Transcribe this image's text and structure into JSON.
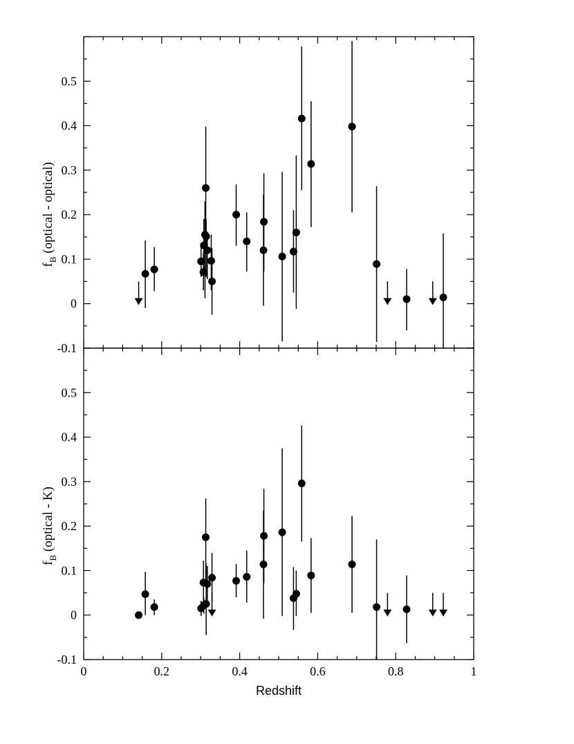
{
  "chart_data": [
    {
      "type": "scatter",
      "panel": "top",
      "xlabel": "",
      "ylabel_main": "f",
      "ylabel_sub": "B",
      "ylabel_rest": " (optical - optical)",
      "xlim": [
        0,
        1
      ],
      "ylim": [
        -0.1,
        0.6
      ],
      "y_ticks": [
        -0.1,
        0,
        0.1,
        0.2,
        0.3,
        0.4,
        0.5
      ],
      "y_tick_labels": [
        "-0.1",
        "0",
        "0.1",
        "0.2",
        "0.3",
        "0.4",
        "0.5"
      ],
      "points": [
        {
          "x": 0.158,
          "y": 0.067,
          "lo": -0.01,
          "hi": 0.142
        },
        {
          "x": 0.181,
          "y": 0.077,
          "lo": 0.028,
          "hi": 0.127
        },
        {
          "x": 0.301,
          "y": 0.095,
          "lo": 0.06,
          "hi": 0.13
        },
        {
          "x": 0.307,
          "y": 0.071,
          "lo": 0.03,
          "hi": 0.115
        },
        {
          "x": 0.308,
          "y": 0.131,
          "lo": 0.065,
          "hi": 0.19
        },
        {
          "x": 0.311,
          "y": 0.155,
          "lo": 0.012,
          "hi": 0.23
        },
        {
          "x": 0.313,
          "y": 0.26,
          "lo": 0.12,
          "hi": 0.398
        },
        {
          "x": 0.314,
          "y": 0.151,
          "lo": 0.06,
          "hi": 0.19
        },
        {
          "x": 0.317,
          "y": 0.12,
          "lo": 0.055,
          "hi": 0.16
        },
        {
          "x": 0.327,
          "y": 0.096,
          "lo": 0.03,
          "hi": 0.155
        },
        {
          "x": 0.329,
          "y": 0.05,
          "lo": -0.025,
          "hi": 0.125
        },
        {
          "x": 0.391,
          "y": 0.2,
          "lo": 0.13,
          "hi": 0.268
        },
        {
          "x": 0.418,
          "y": 0.14,
          "lo": 0.072,
          "hi": 0.205
        },
        {
          "x": 0.461,
          "y": 0.12,
          "lo": -0.005,
          "hi": 0.245
        },
        {
          "x": 0.462,
          "y": 0.184,
          "lo": 0.072,
          "hi": 0.293
        },
        {
          "x": 0.509,
          "y": 0.106,
          "lo": -0.085,
          "hi": 0.296
        },
        {
          "x": 0.538,
          "y": 0.117,
          "lo": 0.025,
          "hi": 0.21
        },
        {
          "x": 0.545,
          "y": 0.16,
          "lo": -0.012,
          "hi": 0.333
        },
        {
          "x": 0.559,
          "y": 0.416,
          "lo": 0.255,
          "hi": 0.578
        },
        {
          "x": 0.583,
          "y": 0.314,
          "lo": 0.172,
          "hi": 0.455
        },
        {
          "x": 0.688,
          "y": 0.398,
          "lo": 0.205,
          "hi": 0.59
        },
        {
          "x": 0.751,
          "y": 0.089,
          "lo": -0.086,
          "hi": 0.264
        },
        {
          "x": 0.828,
          "y": 0.01,
          "lo": -0.06,
          "hi": 0.078
        },
        {
          "x": 0.922,
          "y": 0.014,
          "lo": -0.1,
          "hi": 0.158
        }
      ],
      "upper_limits": [
        {
          "x": 0.141,
          "y": 0.05
        },
        {
          "x": 0.779,
          "y": 0.05
        },
        {
          "x": 0.895,
          "y": 0.05
        }
      ]
    },
    {
      "type": "scatter",
      "panel": "bottom",
      "xlabel": "Redshift",
      "ylabel_main": "f",
      "ylabel_sub": "B",
      "ylabel_rest": " (optical - K)",
      "xlim": [
        0,
        1
      ],
      "ylim": [
        -0.1,
        0.6
      ],
      "x_ticks": [
        0,
        0.2,
        0.4,
        0.6,
        0.8,
        1
      ],
      "x_tick_labels": [
        "0",
        "0.2",
        "0.4",
        "0.6",
        "0.8",
        "1"
      ],
      "y_ticks": [
        -0.1,
        0,
        0.1,
        0.2,
        0.3,
        0.4,
        0.5
      ],
      "y_tick_labels": [
        "-0.1",
        "0",
        "0.1",
        "0.2",
        "0.3",
        "0.4",
        "0.5"
      ],
      "points": [
        {
          "x": 0.141,
          "y": 0.0,
          "lo": 0.0,
          "hi": 0.0
        },
        {
          "x": 0.158,
          "y": 0.047,
          "lo": 0.0,
          "hi": 0.097
        },
        {
          "x": 0.181,
          "y": 0.018,
          "lo": 0.0,
          "hi": 0.035
        },
        {
          "x": 0.301,
          "y": 0.015,
          "lo": -0.002,
          "hi": 0.032
        },
        {
          "x": 0.307,
          "y": 0.073,
          "lo": 0.025,
          "hi": 0.122
        },
        {
          "x": 0.308,
          "y": 0.022,
          "lo": 0.003,
          "hi": 0.04
        },
        {
          "x": 0.313,
          "y": 0.175,
          "lo": 0.08,
          "hi": 0.262
        },
        {
          "x": 0.314,
          "y": 0.025,
          "lo": -0.045,
          "hi": 0.115
        },
        {
          "x": 0.317,
          "y": 0.07,
          "lo": 0.03,
          "hi": 0.11
        },
        {
          "x": 0.329,
          "y": 0.084,
          "lo": 0.03,
          "hi": 0.14
        },
        {
          "x": 0.391,
          "y": 0.077,
          "lo": 0.04,
          "hi": 0.115
        },
        {
          "x": 0.418,
          "y": 0.086,
          "lo": 0.028,
          "hi": 0.145
        },
        {
          "x": 0.461,
          "y": 0.114,
          "lo": -0.008,
          "hi": 0.235
        },
        {
          "x": 0.462,
          "y": 0.178,
          "lo": 0.072,
          "hi": 0.284
        },
        {
          "x": 0.509,
          "y": 0.186,
          "lo": -0.002,
          "hi": 0.375
        },
        {
          "x": 0.538,
          "y": 0.038,
          "lo": -0.033,
          "hi": 0.108
        },
        {
          "x": 0.545,
          "y": 0.048,
          "lo": -0.002,
          "hi": 0.1
        },
        {
          "x": 0.559,
          "y": 0.296,
          "lo": 0.165,
          "hi": 0.426
        },
        {
          "x": 0.583,
          "y": 0.089,
          "lo": 0.005,
          "hi": 0.173
        },
        {
          "x": 0.688,
          "y": 0.114,
          "lo": 0.005,
          "hi": 0.223
        },
        {
          "x": 0.751,
          "y": 0.018,
          "lo": -0.1,
          "hi": 0.17
        },
        {
          "x": 0.828,
          "y": 0.013,
          "lo": -0.063,
          "hi": 0.089
        }
      ],
      "upper_limits": [
        {
          "x": 0.329,
          "y": 0.05
        },
        {
          "x": 0.779,
          "y": 0.05
        },
        {
          "x": 0.895,
          "y": 0.05
        },
        {
          "x": 0.922,
          "y": 0.05
        }
      ]
    }
  ]
}
